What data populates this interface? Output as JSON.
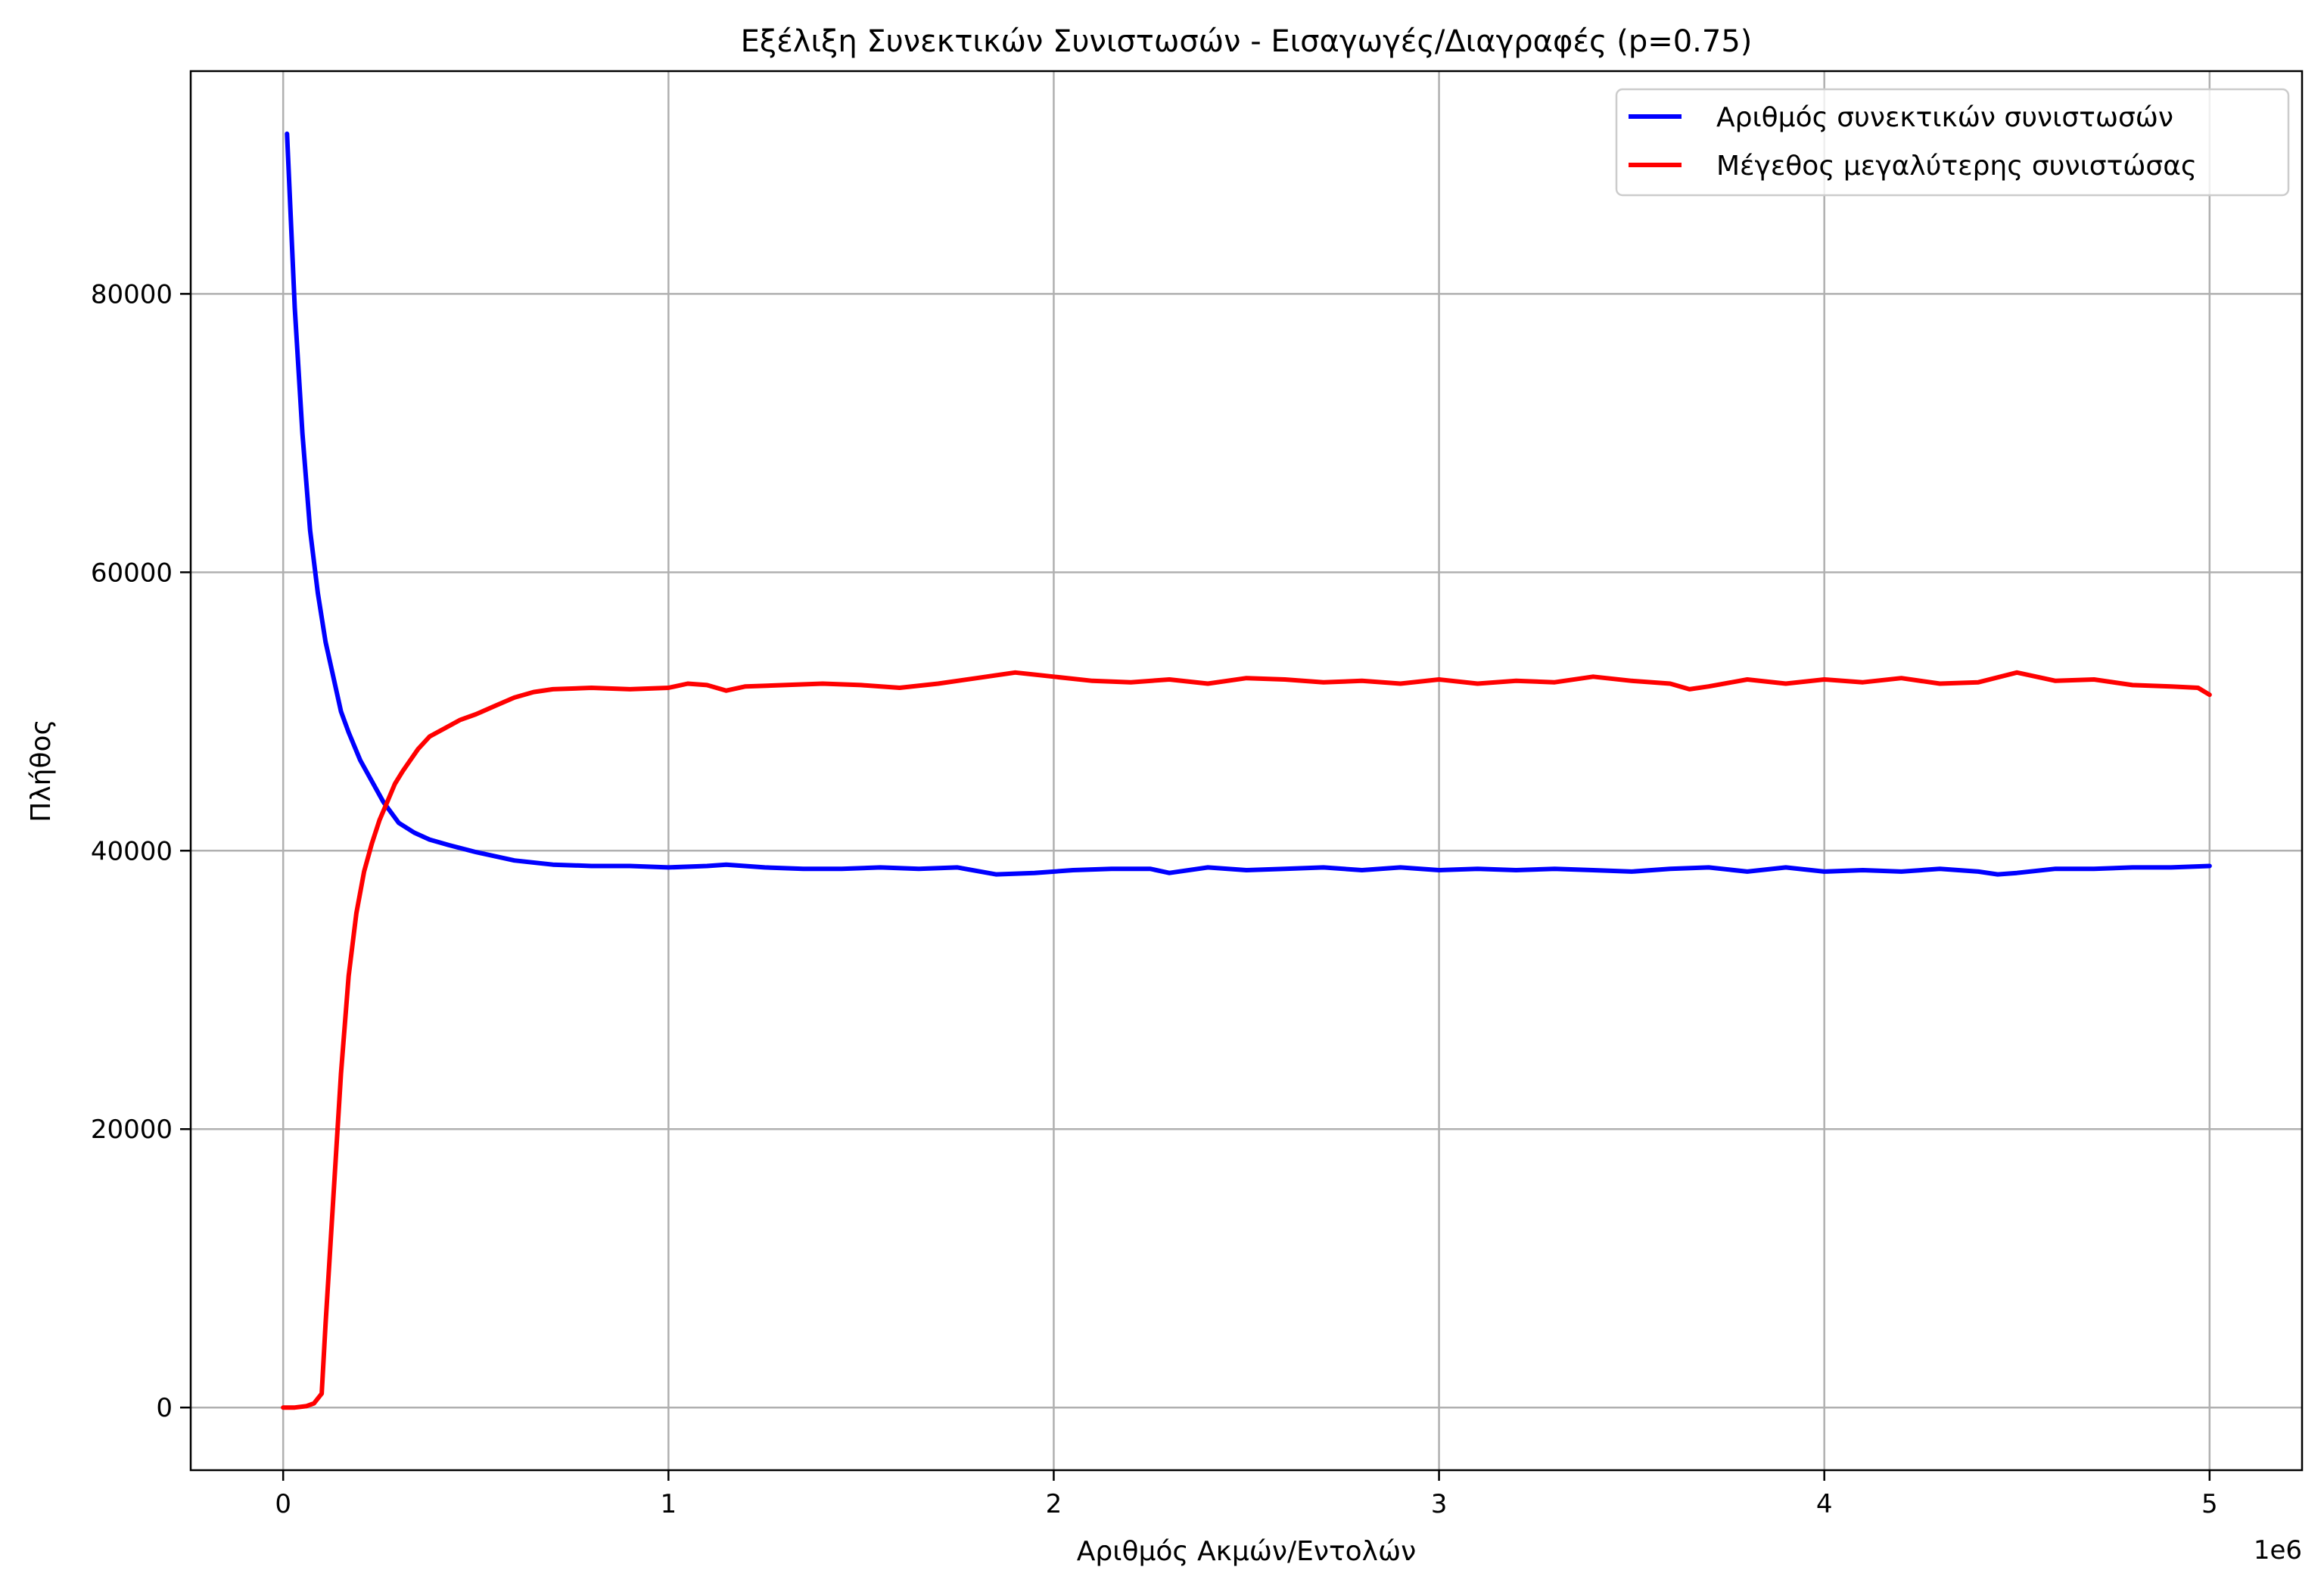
{
  "chart_data": {
    "type": "line",
    "title": "Εξέλιξη Συνεκτικών Συνιστωσών - Εισαγωγές/Διαγραφές (p=0.75)",
    "xlabel": "Αριθμός Ακμών/Εντολών",
    "ylabel": "Πλήθος",
    "x_offset_label": "1e6",
    "xlim": [
      -0.24,
      5.24
    ],
    "ylim": [
      -4500,
      96000
    ],
    "x_ticks": [
      0,
      1,
      2,
      3,
      4,
      5
    ],
    "x_tick_labels": [
      "0",
      "1",
      "2",
      "3",
      "4",
      "5"
    ],
    "y_ticks": [
      0,
      20000,
      40000,
      60000,
      80000
    ],
    "y_tick_labels": [
      "0",
      "20000",
      "40000",
      "60000",
      "80000"
    ],
    "grid": true,
    "legend_position": "top-right",
    "series": [
      {
        "name": "Αριθμός συνεκτικών συνιστωσών",
        "color": "#0000ff",
        "x": [
          0.01,
          0.03,
          0.05,
          0.07,
          0.09,
          0.11,
          0.13,
          0.15,
          0.17,
          0.2,
          0.23,
          0.26,
          0.3,
          0.34,
          0.38,
          0.43,
          0.5,
          0.6,
          0.7,
          0.8,
          0.9,
          1.0,
          1.1,
          1.15,
          1.25,
          1.35,
          1.45,
          1.55,
          1.65,
          1.75,
          1.85,
          1.95,
          2.05,
          2.15,
          2.25,
          2.3,
          2.4,
          2.5,
          2.6,
          2.7,
          2.8,
          2.9,
          3.0,
          3.1,
          3.2,
          3.3,
          3.4,
          3.5,
          3.6,
          3.7,
          3.8,
          3.9,
          4.0,
          4.1,
          4.2,
          4.3,
          4.4,
          4.45,
          4.5,
          4.6,
          4.7,
          4.8,
          4.9,
          5.0
        ],
        "y": [
          91500,
          79000,
          70000,
          63000,
          58500,
          55000,
          52500,
          50000,
          48500,
          46500,
          45000,
          43500,
          42000,
          41300,
          40800,
          40400,
          39900,
          39300,
          39000,
          38900,
          38900,
          38800,
          38900,
          39000,
          38800,
          38700,
          38700,
          38800,
          38700,
          38800,
          38300,
          38400,
          38600,
          38700,
          38700,
          38400,
          38800,
          38600,
          38700,
          38800,
          38600,
          38800,
          38600,
          38700,
          38600,
          38700,
          38600,
          38500,
          38700,
          38800,
          38500,
          38800,
          38500,
          38600,
          38500,
          38700,
          38500,
          38300,
          38400,
          38700,
          38700,
          38800,
          38800,
          38900
        ]
      },
      {
        "name": "Μέγεθος μεγαλύτερης συνιστώσας",
        "color": "#ff0000",
        "x": [
          0.0,
          0.03,
          0.06,
          0.08,
          0.1,
          0.11,
          0.13,
          0.15,
          0.17,
          0.19,
          0.21,
          0.23,
          0.25,
          0.27,
          0.29,
          0.31,
          0.33,
          0.35,
          0.38,
          0.42,
          0.46,
          0.5,
          0.55,
          0.6,
          0.65,
          0.7,
          0.8,
          0.9,
          1.0,
          1.05,
          1.1,
          1.15,
          1.2,
          1.3,
          1.4,
          1.5,
          1.6,
          1.7,
          1.8,
          1.9,
          2.0,
          2.1,
          2.2,
          2.3,
          2.4,
          2.5,
          2.6,
          2.7,
          2.8,
          2.9,
          3.0,
          3.1,
          3.2,
          3.3,
          3.4,
          3.5,
          3.6,
          3.65,
          3.7,
          3.8,
          3.9,
          4.0,
          4.1,
          4.2,
          4.3,
          4.4,
          4.5,
          4.6,
          4.7,
          4.8,
          4.9,
          4.97,
          5.0
        ],
        "y": [
          0,
          0,
          100,
          300,
          1000,
          6000,
          15000,
          24000,
          31000,
          35500,
          38500,
          40500,
          42200,
          43500,
          44800,
          45700,
          46500,
          47300,
          48200,
          48800,
          49400,
          49800,
          50400,
          51000,
          51400,
          51600,
          51700,
          51600,
          51700,
          52000,
          51900,
          51500,
          51800,
          51900,
          52000,
          51900,
          51700,
          52000,
          52400,
          52800,
          52500,
          52200,
          52100,
          52300,
          52000,
          52400,
          52300,
          52100,
          52200,
          52000,
          52300,
          52000,
          52200,
          52100,
          52500,
          52200,
          52000,
          51600,
          51800,
          52300,
          52000,
          52300,
          52100,
          52400,
          52000,
          52100,
          52800,
          52200,
          52300,
          51900,
          51800,
          51700,
          51200
        ]
      }
    ]
  }
}
